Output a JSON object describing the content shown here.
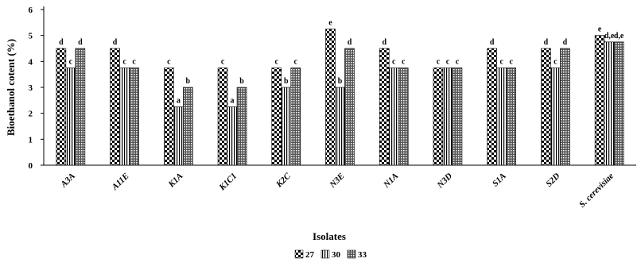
{
  "chart_data": {
    "type": "bar",
    "xlabel": "Isolates",
    "ylabel": "Bioethanol cotent (%)",
    "ylim": [
      0,
      6
    ],
    "yticks": [
      0,
      1,
      2,
      3,
      4,
      5,
      6
    ],
    "grid": false,
    "legend_position": "bottom",
    "categories": [
      "A3A",
      "A11E",
      "K1A",
      "K1C1",
      "K2C",
      "N3E",
      "N1A",
      "N3D",
      "S1A",
      "S2D",
      "S. cerevisiae"
    ],
    "series": [
      {
        "name": "27",
        "pattern": "checker",
        "values": [
          4.5,
          4.5,
          3.75,
          3.75,
          3.75,
          5.25,
          4.5,
          3.75,
          4.5,
          4.5,
          5.0
        ],
        "labels": [
          "d",
          "d",
          "c",
          "c",
          "c",
          "e",
          "d",
          "c",
          "d",
          "d",
          "e"
        ]
      },
      {
        "name": "30",
        "pattern": "vertical",
        "values": [
          3.75,
          3.75,
          2.25,
          2.25,
          3.0,
          3.0,
          3.75,
          3.75,
          3.75,
          3.75,
          4.75
        ],
        "labels": [
          "c",
          "c",
          "a",
          "a",
          "b",
          "b",
          "c",
          "c",
          "c",
          "c",
          "d,e"
        ]
      },
      {
        "name": "33",
        "pattern": "grid",
        "values": [
          4.5,
          3.75,
          3.0,
          3.0,
          3.75,
          4.5,
          3.75,
          3.75,
          3.75,
          4.5,
          4.75
        ],
        "labels": [
          "d",
          "c",
          "b",
          "b",
          "c",
          "d",
          "c",
          "c",
          "c",
          "d",
          "d,e"
        ]
      }
    ]
  }
}
